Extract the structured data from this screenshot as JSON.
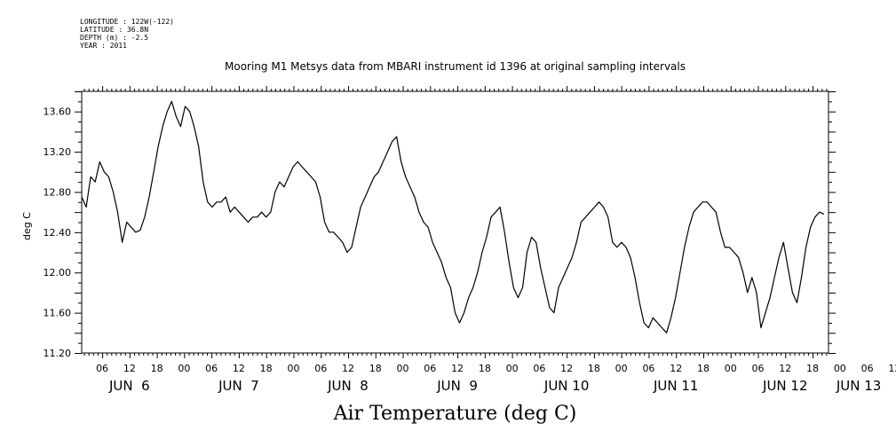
{
  "header": {
    "longitude": "LONGITUDE : 122W(-122)",
    "latitude": "LATITUDE : 36.8N",
    "depth": "DEPTH (m) : -2.5",
    "year": "YEAR : 2011"
  },
  "chart_data": {
    "type": "line",
    "title": "Mooring M1 Metsys data from MBARI instrument id 1396 at original sampling intervals",
    "xlabel": "Air Temperature (deg C)",
    "ylabel": "deg C",
    "ylim": [
      11.2,
      13.8
    ],
    "yticks": [
      "11.20",
      "11.60",
      "12.00",
      "12.40",
      "12.80",
      "13.20",
      "13.60"
    ],
    "xlim_hours": [
      1.5,
      165.5
    ],
    "x_hour_ticks": [
      "06",
      "12",
      "18",
      "00",
      "06",
      "12",
      "18",
      "00",
      "06",
      "12",
      "18",
      "00",
      "06",
      "12",
      "18",
      "00",
      "06",
      "12",
      "18",
      "00",
      "06",
      "12",
      "18",
      "00",
      "06",
      "12",
      "18",
      "00",
      "06",
      "12",
      "18",
      "00"
    ],
    "x_date_labels": [
      "JUN  6",
      "JUN  7",
      "JUN  8",
      "JUN  9",
      "JUN 10",
      "JUN 11",
      "JUN 12",
      "JUN 13"
    ],
    "grid": false,
    "series": [
      {
        "x_start": "2011-06-06 01:30",
        "x_end": "2011-06-12 21:30",
        "values": [
          12.75,
          12.65,
          12.95,
          12.9,
          13.1,
          13.0,
          12.95,
          12.8,
          12.6,
          12.3,
          12.5,
          12.45,
          12.4,
          12.42,
          12.55,
          12.75,
          13.0,
          13.25,
          13.45,
          13.6,
          13.7,
          13.55,
          13.45,
          13.65,
          13.6,
          13.45,
          13.25,
          12.9,
          12.7,
          12.65,
          12.7,
          12.7,
          12.75,
          12.6,
          12.65,
          12.6,
          12.55,
          12.5,
          12.55,
          12.55,
          12.6,
          12.55,
          12.6,
          12.8,
          12.9,
          12.85,
          12.95,
          13.05,
          13.1,
          13.05,
          13.0,
          12.95,
          12.9,
          12.75,
          12.5,
          12.4,
          12.4,
          12.35,
          12.3,
          12.2,
          12.25,
          12.45,
          12.65,
          12.75,
          12.85,
          12.95,
          13.0,
          13.1,
          13.2,
          13.3,
          13.35,
          13.1,
          12.95,
          12.85,
          12.75,
          12.6,
          12.5,
          12.45,
          12.3,
          12.2,
          12.1,
          11.95,
          11.85,
          11.6,
          11.5,
          11.6,
          11.75,
          11.85,
          12.0,
          12.2,
          12.35,
          12.55,
          12.6,
          12.65,
          12.4,
          12.1,
          11.85,
          11.75,
          11.85,
          12.2,
          12.35,
          12.3,
          12.05,
          11.85,
          11.65,
          11.6,
          11.85,
          11.95,
          12.05,
          12.15,
          12.3,
          12.5,
          12.55,
          12.6,
          12.65,
          12.7,
          12.65,
          12.55,
          12.3,
          12.25,
          12.3,
          12.25,
          12.15,
          11.95,
          11.7,
          11.5,
          11.45,
          11.55,
          11.5,
          11.45,
          11.4,
          11.55,
          11.75,
          12.0,
          12.25,
          12.45,
          12.6,
          12.65,
          12.7,
          12.7,
          12.65,
          12.6,
          12.4,
          12.25,
          12.25,
          12.2,
          12.15,
          12.0,
          11.8,
          11.95,
          11.8,
          11.45,
          11.6,
          11.75,
          11.95,
          12.15,
          12.3,
          12.05,
          11.8,
          11.7,
          11.95,
          12.25,
          12.45,
          12.55,
          12.6,
          12.58
        ]
      }
    ]
  }
}
